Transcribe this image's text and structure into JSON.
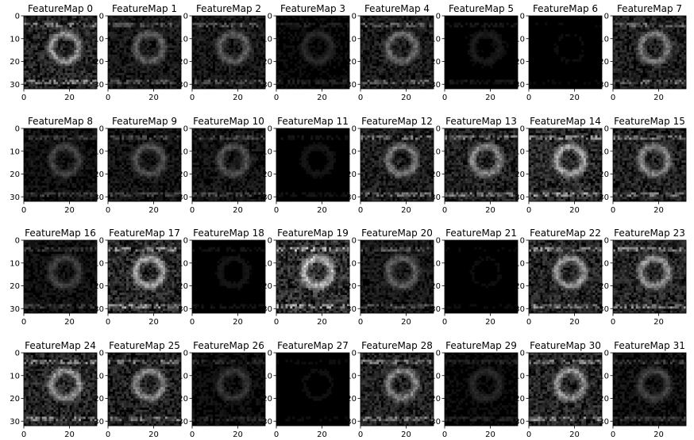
{
  "chart_data": {
    "type": "heatmap",
    "grid_rows": 4,
    "grid_cols": 8,
    "colormap": "gray",
    "background_color": "#ffffff",
    "axes": {
      "xlim": [
        0,
        32
      ],
      "ylim": [
        32,
        0
      ],
      "xticks": [
        0,
        20
      ],
      "yticks": [
        0,
        10,
        20,
        30
      ]
    },
    "panels": [
      {
        "title": "FeatureMap 0",
        "intensity": 0.55
      },
      {
        "title": "FeatureMap 1",
        "intensity": 0.35
      },
      {
        "title": "FeatureMap 2",
        "intensity": 0.35
      },
      {
        "title": "FeatureMap 3",
        "intensity": 0.15
      },
      {
        "title": "FeatureMap 4",
        "intensity": 0.4
      },
      {
        "title": "FeatureMap 5",
        "intensity": 0.1
      },
      {
        "title": "FeatureMap 6",
        "intensity": 0.05
      },
      {
        "title": "FeatureMap 7",
        "intensity": 0.45
      },
      {
        "title": "FeatureMap 8",
        "intensity": 0.25
      },
      {
        "title": "FeatureMap 9",
        "intensity": 0.3
      },
      {
        "title": "FeatureMap 10",
        "intensity": 0.3
      },
      {
        "title": "FeatureMap 11",
        "intensity": 0.08
      },
      {
        "title": "FeatureMap 12",
        "intensity": 0.45
      },
      {
        "title": "FeatureMap 13",
        "intensity": 0.5
      },
      {
        "title": "FeatureMap 14",
        "intensity": 0.6
      },
      {
        "title": "FeatureMap 15",
        "intensity": 0.5
      },
      {
        "title": "FeatureMap 16",
        "intensity": 0.25
      },
      {
        "title": "FeatureMap 17",
        "intensity": 0.6
      },
      {
        "title": "FeatureMap 18",
        "intensity": 0.08
      },
      {
        "title": "FeatureMap 19",
        "intensity": 0.7
      },
      {
        "title": "FeatureMap 20",
        "intensity": 0.35
      },
      {
        "title": "FeatureMap 21",
        "intensity": 0.05
      },
      {
        "title": "FeatureMap 22",
        "intensity": 0.55
      },
      {
        "title": "FeatureMap 23",
        "intensity": 0.55
      },
      {
        "title": "FeatureMap 24",
        "intensity": 0.55
      },
      {
        "title": "FeatureMap 25",
        "intensity": 0.5
      },
      {
        "title": "FeatureMap 26",
        "intensity": 0.2
      },
      {
        "title": "FeatureMap 27",
        "intensity": 0.06
      },
      {
        "title": "FeatureMap 28",
        "intensity": 0.5
      },
      {
        "title": "FeatureMap 29",
        "intensity": 0.15
      },
      {
        "title": "FeatureMap 30",
        "intensity": 0.55
      },
      {
        "title": "FeatureMap 31",
        "intensity": 0.25
      }
    ]
  }
}
